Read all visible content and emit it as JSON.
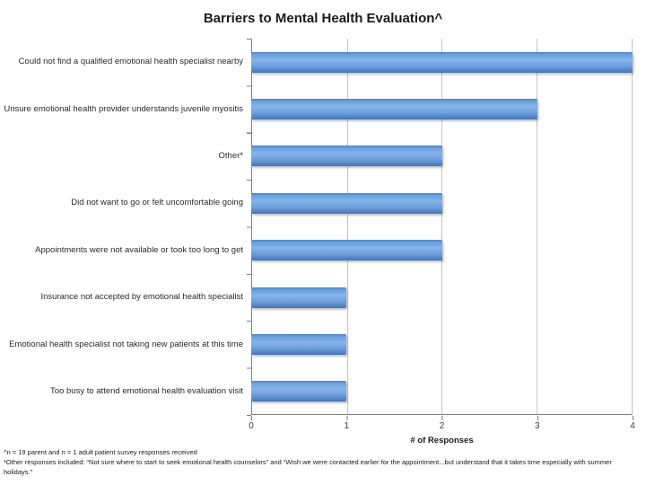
{
  "title": "Barriers to Mental Health Evaluation^",
  "chart_data": {
    "type": "bar",
    "orientation": "horizontal",
    "title": "Barriers to Mental Health Evaluation^",
    "categories": [
      "Could not find a qualified emotional health specialist nearby",
      "Unsure emotional health provider understands juvenile myositis",
      "Other*",
      "Did not want to go or felt uncomfortable going",
      "Appointments were not available or took too long to get",
      "Insurance not accepted by emotional health specialist",
      "Emotional health specialist not taking new patients at this time",
      "Too busy to attend emotional health evaluation visit"
    ],
    "values": [
      4,
      3,
      2,
      2,
      2,
      1,
      1,
      1
    ],
    "xlabel": "# of Responses",
    "ylabel": "",
    "xlim": [
      0,
      4
    ],
    "xticks": [
      "0",
      "1",
      "2",
      "3",
      "4"
    ],
    "grid": true,
    "legend": "none",
    "bar_color": "#6FA0DC",
    "gridline_color": "#C3C3C3",
    "axis_color": "#7F7F7F"
  },
  "footnotes": {
    "line1": "^n = 19 parent and n = 1 adult patient survey responses received",
    "line2": "*Other responses included: “Not sure where to start to seek emotional health counselors” and “Wish we were contacted earlier for the appointment...but understand that it takes time especially with summer",
    "line3": "holidays.”"
  }
}
